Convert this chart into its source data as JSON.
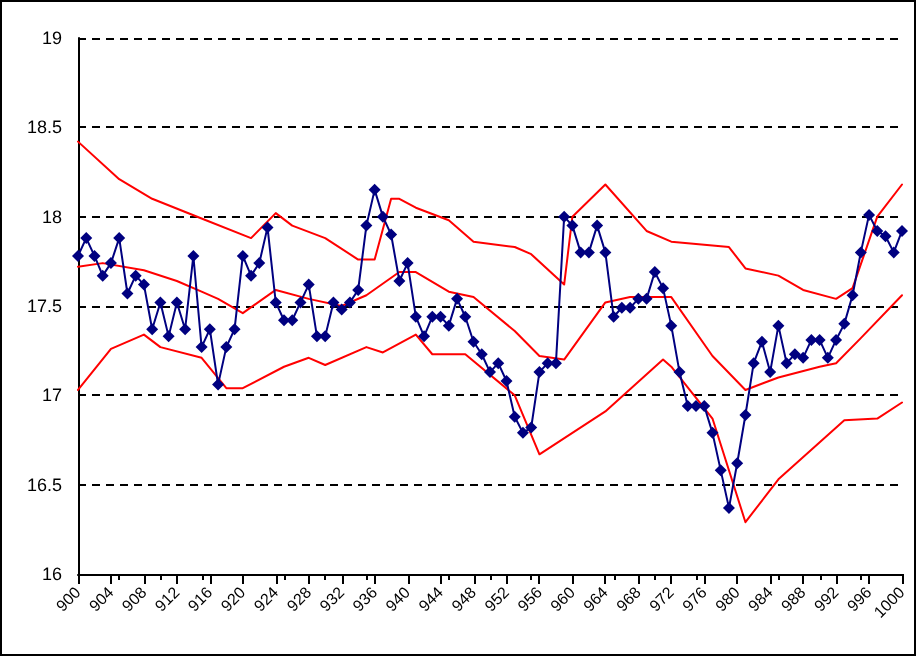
{
  "chart_data": {
    "type": "line",
    "xlim": [
      900,
      1000
    ],
    "xticks": [
      900,
      904,
      908,
      912,
      916,
      920,
      924,
      928,
      932,
      936,
      940,
      944,
      948,
      952,
      956,
      960,
      964,
      968,
      972,
      976,
      980,
      984,
      988,
      992,
      996,
      1000
    ],
    "ylim": [
      16,
      19
    ],
    "yticks": [
      16,
      16.5,
      17,
      17.5,
      18,
      18.5,
      19
    ],
    "grid": "y",
    "series": [
      {
        "color": "#ff0000",
        "marker": "none",
        "x": [
          900,
          905,
          909,
          915,
          921,
          924,
          926,
          930,
          934,
          936,
          938,
          939,
          941,
          945,
          948,
          953,
          955,
          959,
          960,
          964,
          969,
          972,
          979,
          981,
          985,
          988,
          992,
          994,
          997,
          1000
        ],
        "values": [
          18.42,
          18.21,
          18.1,
          17.99,
          17.88,
          18.02,
          17.95,
          17.88,
          17.76,
          17.76,
          18.1,
          18.1,
          18.05,
          17.98,
          17.86,
          17.83,
          17.79,
          17.62,
          18.0,
          18.18,
          17.92,
          17.86,
          17.83,
          17.71,
          17.67,
          17.59,
          17.54,
          17.6,
          18.0,
          18.18
        ]
      },
      {
        "color": "#ff0000",
        "marker": "none",
        "x": [
          900,
          903,
          908,
          912,
          915,
          917,
          920,
          924,
          928,
          932,
          935,
          939,
          941,
          945,
          948,
          953,
          956,
          959,
          964,
          967,
          972,
          977,
          981,
          985,
          990,
          992,
          995,
          1000
        ],
        "values": [
          17.72,
          17.74,
          17.7,
          17.64,
          17.58,
          17.54,
          17.46,
          17.59,
          17.54,
          17.5,
          17.56,
          17.69,
          17.69,
          17.58,
          17.55,
          17.36,
          17.22,
          17.2,
          17.52,
          17.55,
          17.55,
          17.22,
          17.03,
          17.1,
          17.16,
          17.18,
          17.32,
          17.56
        ]
      },
      {
        "color": "#ff0000",
        "marker": "none",
        "x": [
          900,
          904,
          908,
          910,
          915,
          918,
          920,
          925,
          928,
          930,
          935,
          937,
          941,
          943,
          947,
          953,
          956,
          960,
          964,
          971,
          972,
          977,
          981,
          985,
          993,
          997,
          1000
        ],
        "values": [
          17.03,
          17.26,
          17.34,
          17.27,
          17.21,
          17.04,
          17.04,
          17.16,
          17.21,
          17.17,
          17.27,
          17.24,
          17.34,
          17.23,
          17.23,
          17.0,
          16.67,
          16.79,
          16.91,
          17.2,
          17.16,
          16.87,
          16.29,
          16.53,
          16.86,
          16.87,
          16.96
        ]
      },
      {
        "color": "#000080",
        "marker": "diamond",
        "x": [
          900,
          901,
          902,
          903,
          904,
          905,
          906,
          907,
          908,
          909,
          910,
          911,
          912,
          913,
          914,
          915,
          916,
          917,
          918,
          919,
          920,
          921,
          922,
          923,
          924,
          925,
          926,
          927,
          928,
          929,
          930,
          931,
          932,
          933,
          934,
          935,
          936,
          937,
          938,
          939,
          940,
          941,
          942,
          943,
          944,
          945,
          946,
          947,
          948,
          949,
          950,
          951,
          952,
          953,
          954,
          955,
          956,
          957,
          958,
          959,
          960,
          961,
          962,
          963,
          964,
          965,
          966,
          967,
          968,
          969,
          970,
          971,
          972,
          973,
          974,
          975,
          976,
          977,
          978,
          979,
          980,
          981,
          982,
          983,
          984,
          985,
          986,
          987,
          988,
          989,
          990,
          991,
          992,
          993,
          994,
          995,
          996,
          997,
          998,
          999,
          1000
        ],
        "values": [
          17.78,
          17.88,
          17.78,
          17.67,
          17.74,
          17.88,
          17.57,
          17.67,
          17.62,
          17.37,
          17.52,
          17.33,
          17.52,
          17.37,
          17.78,
          17.27,
          17.37,
          17.06,
          17.27,
          17.37,
          17.78,
          17.67,
          17.74,
          17.94,
          17.52,
          17.42,
          17.42,
          17.52,
          17.62,
          17.33,
          17.33,
          17.52,
          17.48,
          17.52,
          17.59,
          17.95,
          18.15,
          18.0,
          17.9,
          17.64,
          17.74,
          17.44,
          17.33,
          17.44,
          17.44,
          17.39,
          17.54,
          17.44,
          17.3,
          17.23,
          17.13,
          17.18,
          17.08,
          16.88,
          16.79,
          16.82,
          17.13,
          17.18,
          17.18,
          18.0,
          17.95,
          17.8,
          17.8,
          17.95,
          17.8,
          17.44,
          17.49,
          17.49,
          17.54,
          17.54,
          17.69,
          17.6,
          17.39,
          17.13,
          16.94,
          16.94,
          16.94,
          16.79,
          16.58,
          16.37,
          16.62,
          16.89,
          17.18,
          17.3,
          17.13,
          17.39,
          17.18,
          17.23,
          17.21,
          17.31,
          17.31,
          17.21,
          17.31,
          17.4,
          17.56,
          17.8,
          18.01,
          17.92,
          17.89,
          17.8,
          17.92
        ]
      }
    ]
  }
}
